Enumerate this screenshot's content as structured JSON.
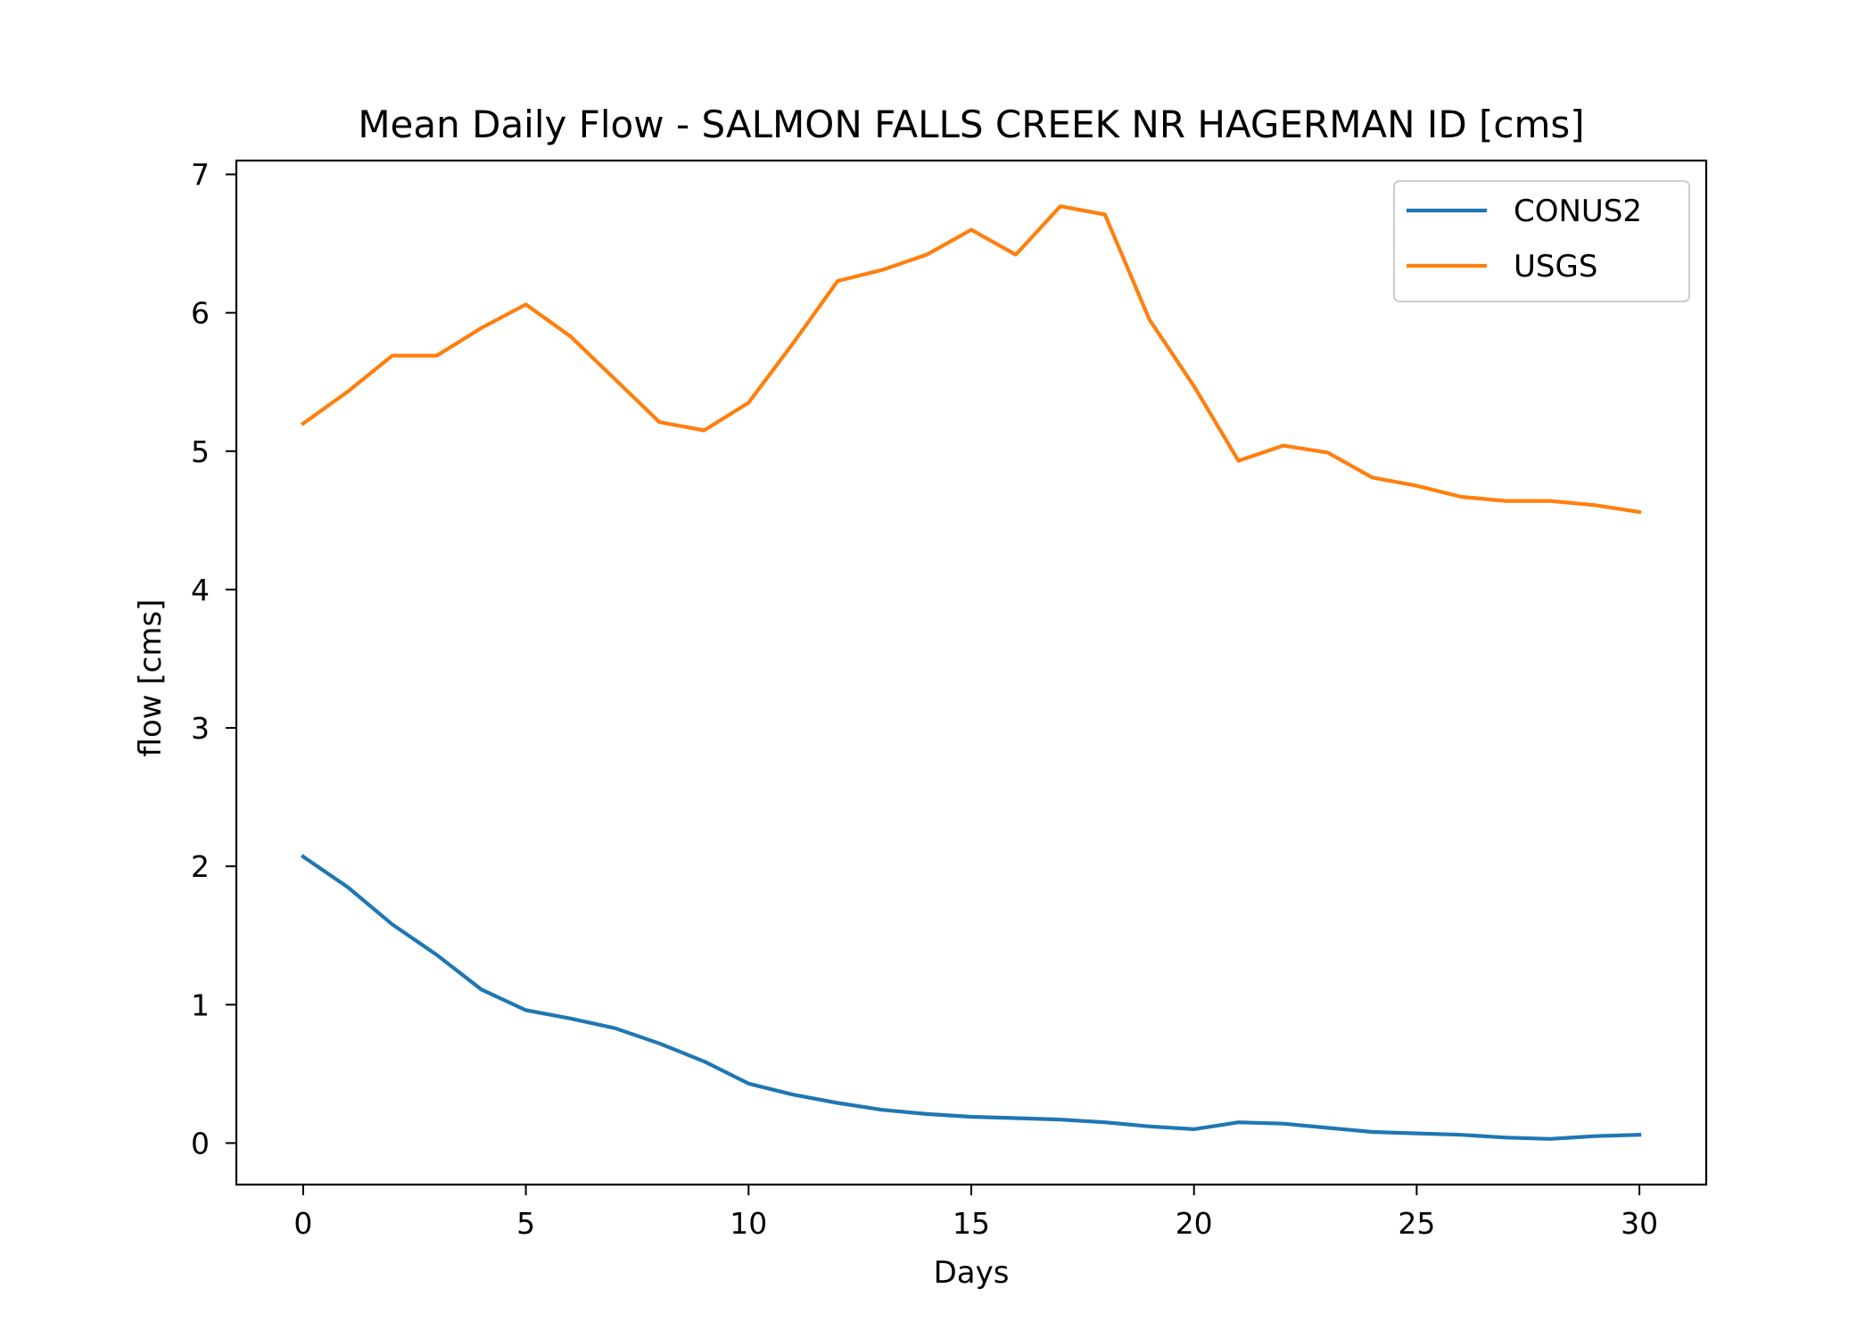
{
  "chart_data": {
    "type": "line",
    "title": "Mean Daily Flow - SALMON FALLS CREEK NR HAGERMAN ID [cms]",
    "xlabel": "Days",
    "ylabel": "flow [cms]",
    "xlim": [
      -1.5,
      31.5
    ],
    "ylim": [
      -0.3,
      7.1
    ],
    "xticks": [
      0,
      5,
      10,
      15,
      20,
      25,
      30
    ],
    "yticks": [
      0,
      1,
      2,
      3,
      4,
      5,
      6,
      7
    ],
    "grid": false,
    "legend_position": "top-right",
    "x": [
      0,
      1,
      2,
      3,
      4,
      5,
      6,
      7,
      8,
      9,
      10,
      11,
      12,
      13,
      14,
      15,
      16,
      17,
      18,
      19,
      20,
      21,
      22,
      23,
      24,
      25,
      26,
      27,
      28,
      29,
      30
    ],
    "series": [
      {
        "name": "CONUS2",
        "color": "#1f77b4",
        "values": [
          2.07,
          1.85,
          1.58,
          1.36,
          1.11,
          0.96,
          0.9,
          0.83,
          0.72,
          0.59,
          0.43,
          0.35,
          0.29,
          0.24,
          0.21,
          0.19,
          0.18,
          0.17,
          0.15,
          0.12,
          0.1,
          0.15,
          0.14,
          0.11,
          0.08,
          0.07,
          0.06,
          0.04,
          0.03,
          0.05,
          0.06
        ]
      },
      {
        "name": "USGS",
        "color": "#ff7f0e",
        "values": [
          5.2,
          5.43,
          5.69,
          5.69,
          5.89,
          6.06,
          5.83,
          5.52,
          5.21,
          5.15,
          5.35,
          5.78,
          6.23,
          6.31,
          6.42,
          6.6,
          6.42,
          6.77,
          6.71,
          5.95,
          5.47,
          4.93,
          5.04,
          4.99,
          4.81,
          4.75,
          4.67,
          4.64,
          4.64,
          4.61,
          4.56
        ]
      }
    ]
  }
}
